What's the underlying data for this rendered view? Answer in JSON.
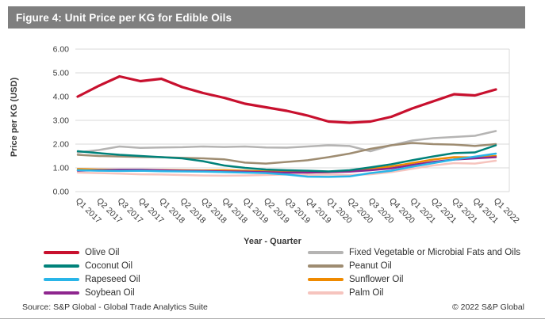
{
  "figure": {
    "title": "Figure 4: Unit Price per KG for Edible Oils",
    "source": "Source: S&P Global - Global Trade Analytics Suite",
    "copyright": "© 2022 S&P Global"
  },
  "colors": {
    "title_bar_bg": "#7f7f7f",
    "title_text": "#ffffff",
    "grid": "#d9d9d9",
    "axis_text": "#3a3a3a"
  },
  "chart_data": {
    "type": "line",
    "title": "Figure 4: Unit Price per KG for Edible Oils",
    "xlabel": "Year - Quarter",
    "ylabel": "Price per KG (USD)",
    "ylim": [
      0,
      6
    ],
    "yticks": [
      "0.00",
      "1.00",
      "2.00",
      "3.00",
      "4.00",
      "5.00",
      "6.00"
    ],
    "grid": true,
    "legend_position": "bottom-two-columns",
    "categories": [
      "Q1 2017",
      "Q2 2017",
      "Q3 2017",
      "Q4 2017",
      "Q1 2018",
      "Q2 2018",
      "Q3 2018",
      "Q4 2018",
      "Q1 2019",
      "Q2 2019",
      "Q3 2019",
      "Q4 2019",
      "Q1 2020",
      "Q2 2020",
      "Q3 2020",
      "Q4 2020",
      "Q1 2021",
      "Q2 2021",
      "Q3 2021",
      "Q4 2021",
      "Q1 2022"
    ],
    "series": [
      {
        "name": "Fixed Vegetable or Microbial Fats and Oils",
        "color": "#b5b4b3",
        "width": 2.5,
        "values": [
          1.65,
          1.75,
          1.9,
          1.84,
          1.86,
          1.87,
          1.9,
          1.88,
          1.9,
          1.86,
          1.85,
          1.9,
          1.95,
          1.92,
          1.7,
          1.95,
          2.15,
          2.25,
          2.3,
          2.35,
          2.55
        ]
      },
      {
        "name": "Palm Oil",
        "color": "#f6c4be",
        "width": 2.5,
        "values": [
          0.8,
          0.78,
          0.76,
          0.73,
          0.72,
          0.7,
          0.68,
          0.67,
          0.68,
          0.7,
          0.72,
          0.7,
          0.72,
          0.7,
          0.73,
          0.82,
          0.96,
          1.1,
          1.2,
          1.18,
          1.3
        ]
      },
      {
        "name": "Sunflower Oil",
        "color": "#ef8a00",
        "width": 2.5,
        "values": [
          0.95,
          0.93,
          0.92,
          0.92,
          0.91,
          0.9,
          0.89,
          0.9,
          0.88,
          0.85,
          0.83,
          0.8,
          0.82,
          0.86,
          0.96,
          1.06,
          1.2,
          1.35,
          1.45,
          1.44,
          1.5
        ]
      },
      {
        "name": "Soybean Oil",
        "color": "#8e268e",
        "width": 2.5,
        "values": [
          0.88,
          0.9,
          0.92,
          0.92,
          0.9,
          0.88,
          0.87,
          0.85,
          0.84,
          0.82,
          0.8,
          0.8,
          0.82,
          0.84,
          0.9,
          0.98,
          1.12,
          1.25,
          1.35,
          1.4,
          1.45
        ]
      },
      {
        "name": "Rapeseed Oil",
        "color": "#29b5e8",
        "width": 2.5,
        "values": [
          0.9,
          0.88,
          0.87,
          0.88,
          0.86,
          0.85,
          0.84,
          0.82,
          0.8,
          0.78,
          0.72,
          0.63,
          0.62,
          0.64,
          0.78,
          0.88,
          1.05,
          1.2,
          1.35,
          1.47,
          1.6
        ]
      },
      {
        "name": "Peanut Oil",
        "color": "#9e8c71",
        "width": 2.5,
        "values": [
          1.55,
          1.5,
          1.48,
          1.46,
          1.45,
          1.42,
          1.4,
          1.36,
          1.22,
          1.18,
          1.25,
          1.32,
          1.45,
          1.6,
          1.8,
          1.95,
          2.05,
          2.0,
          1.98,
          1.92,
          2.0
        ]
      },
      {
        "name": "Coconut Oil",
        "color": "#00827a",
        "width": 2.5,
        "values": [
          1.7,
          1.62,
          1.55,
          1.5,
          1.45,
          1.4,
          1.28,
          1.1,
          1.0,
          0.93,
          0.9,
          0.88,
          0.85,
          0.9,
          1.02,
          1.15,
          1.32,
          1.48,
          1.62,
          1.65,
          1.95
        ]
      },
      {
        "name": "Olive Oil",
        "color": "#c8102e",
        "width": 3.2,
        "values": [
          4.0,
          4.45,
          4.85,
          4.65,
          4.75,
          4.4,
          4.15,
          3.95,
          3.7,
          3.55,
          3.4,
          3.2,
          2.95,
          2.9,
          2.95,
          3.15,
          3.5,
          3.8,
          4.1,
          4.05,
          4.3
        ]
      }
    ],
    "legend_left_column": [
      "Olive Oil",
      "Coconut Oil",
      "Rapeseed Oil",
      "Soybean Oil"
    ],
    "legend_right_column": [
      "Fixed Vegetable or Microbial Fats and Oils",
      "Peanut Oil",
      "Sunflower Oil",
      "Palm Oil"
    ]
  }
}
